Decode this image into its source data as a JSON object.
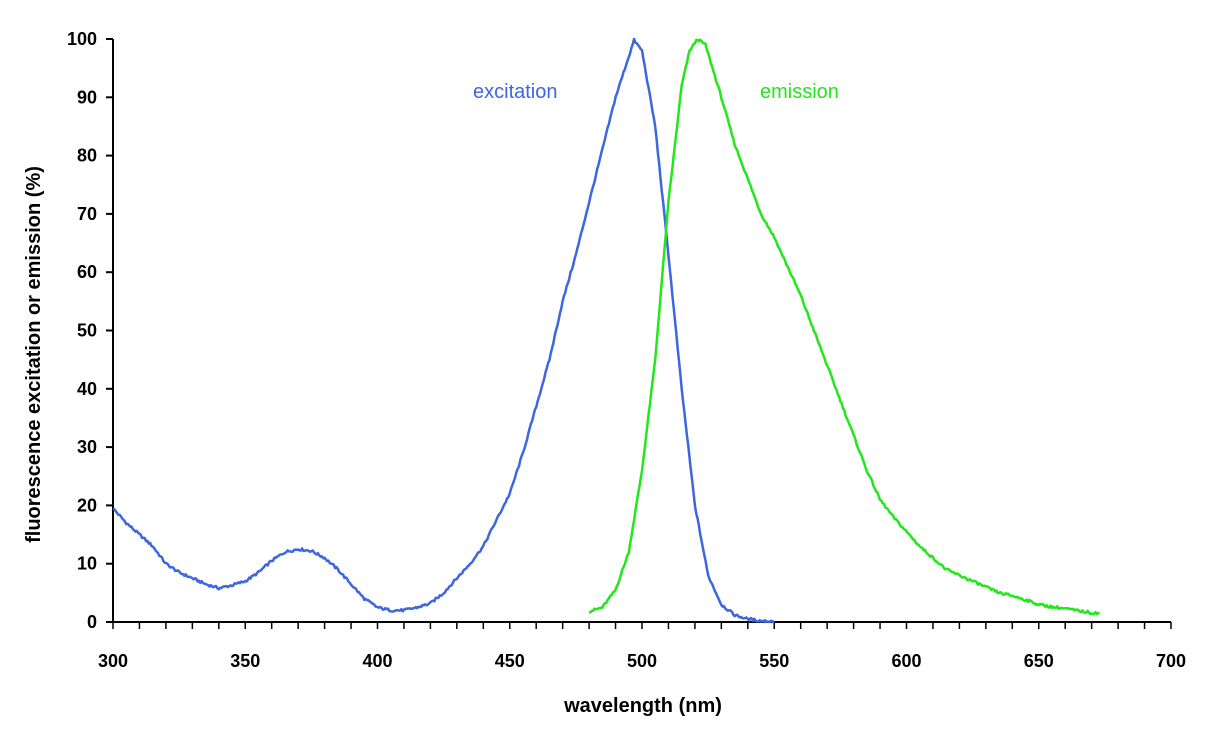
{
  "chart_data": {
    "type": "line",
    "xlabel": "wavelength (nm)",
    "ylabel": "fluorescence excitation or emission (%)",
    "xlim": [
      300,
      700
    ],
    "ylim": [
      0,
      100
    ],
    "x_ticks": [
      "300",
      "350",
      "400",
      "450",
      "500",
      "550",
      "600",
      "650",
      "700"
    ],
    "y_ticks": [
      "0",
      "10",
      "20",
      "30",
      "40",
      "50",
      "60",
      "70",
      "80",
      "90",
      "100"
    ],
    "x_minor_step": 10,
    "grid": false,
    "legend": "none",
    "series": [
      {
        "name": "excitation",
        "color": "#3d66e0",
        "x": [
          300,
          305,
          310,
          315,
          320,
          325,
          330,
          335,
          340,
          345,
          350,
          355,
          360,
          365,
          370,
          375,
          380,
          385,
          390,
          395,
          400,
          405,
          410,
          415,
          420,
          425,
          430,
          435,
          440,
          445,
          450,
          455,
          460,
          465,
          470,
          475,
          480,
          485,
          490,
          495,
          497,
          500,
          505,
          510,
          515,
          520,
          525,
          530,
          535,
          540,
          545,
          550
        ],
        "y": [
          19.5,
          17,
          15,
          13,
          10,
          8.5,
          7.5,
          6.5,
          5.8,
          6.3,
          7,
          8.5,
          10.5,
          12,
          12.5,
          12.2,
          11,
          9,
          6.5,
          4,
          2.5,
          2,
          2,
          2.5,
          3.2,
          5,
          7.5,
          10,
          13,
          17.5,
          22,
          29,
          37,
          45,
          55,
          63,
          72,
          81,
          90,
          97,
          99.8,
          98,
          85,
          63,
          40,
          20,
          8,
          3,
          1.2,
          0.5,
          0.2,
          0.1
        ]
      },
      {
        "name": "emission",
        "color": "#22e81a",
        "x": [
          480,
          485,
          490,
          495,
          500,
          505,
          510,
          515,
          518,
          521,
          524,
          530,
          535,
          540,
          545,
          550,
          555,
          560,
          565,
          570,
          575,
          580,
          585,
          590,
          595,
          600,
          605,
          610,
          615,
          620,
          625,
          630,
          635,
          640,
          645,
          650,
          655,
          660,
          665,
          670,
          673
        ],
        "y": [
          1.8,
          2.5,
          5.5,
          12,
          26,
          45,
          72,
          92,
          98,
          100,
          99,
          90,
          82,
          76,
          70,
          66,
          61,
          56,
          50,
          44,
          38,
          32,
          26,
          21,
          18,
          15.5,
          13,
          11,
          9,
          8,
          7,
          6,
          5,
          4.5,
          3.8,
          3,
          2.6,
          2.3,
          1.9,
          1.6,
          1.5
        ]
      }
    ]
  }
}
